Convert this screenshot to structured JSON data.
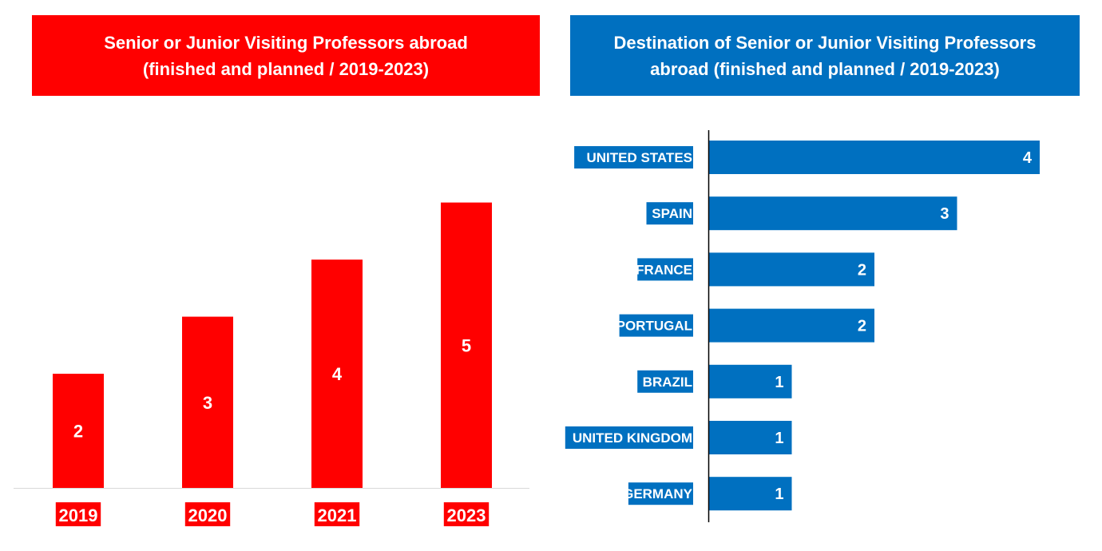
{
  "colors": {
    "left_accent": "#ff0000",
    "right_accent": "#0070c0",
    "label_text": "#ffffff"
  },
  "chart_data": [
    {
      "type": "bar",
      "orientation": "vertical",
      "title_lines": [
        "Senior or Junior Visiting Professors abroad",
        "(finished  and planned / 2019-2023)"
      ],
      "categories": [
        "2019",
        "2020",
        "2021",
        "2023"
      ],
      "values": [
        2,
        3,
        4,
        5
      ],
      "ylim": [
        0,
        5.75
      ],
      "grid": false,
      "legend": "none"
    },
    {
      "type": "bar",
      "orientation": "horizontal",
      "title_lines": [
        "Destination of Senior or Junior Visiting Professors",
        "abroad (finished  and planned / 2019-2023)"
      ],
      "categories": [
        "UNITED STATES",
        "SPAIN",
        "FRANCE",
        "PORTUGAL",
        "BRAZIL",
        "UNITED KINGDOM",
        "GERMANY"
      ],
      "values": [
        4,
        3,
        2,
        2,
        1,
        1,
        1
      ],
      "xlim": [
        0,
        4
      ],
      "grid": false,
      "legend": "none"
    }
  ]
}
